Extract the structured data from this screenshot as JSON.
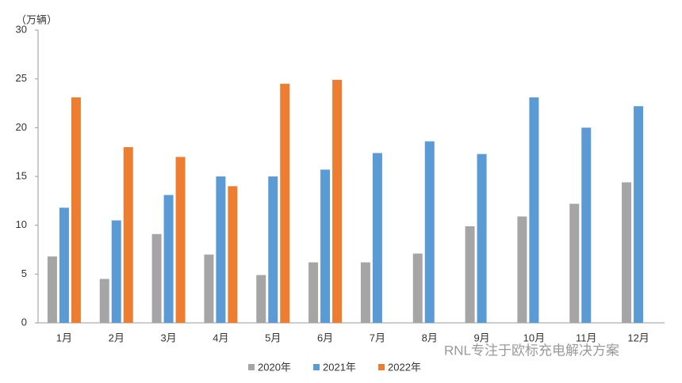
{
  "chart_data": {
    "type": "bar",
    "unit_label": "（万辆）",
    "categories": [
      "1月",
      "2月",
      "3月",
      "4月",
      "5月",
      "6月",
      "7月",
      "8月",
      "9月",
      "10月",
      "11月",
      "12月"
    ],
    "series": [
      {
        "name": "2020年",
        "color": "#a5a5a5",
        "values": [
          6.8,
          4.5,
          9.1,
          7.0,
          4.9,
          6.2,
          6.2,
          7.1,
          9.9,
          10.9,
          12.2,
          14.4
        ]
      },
      {
        "name": "2021年",
        "color": "#5b9bd5",
        "values": [
          11.8,
          10.5,
          13.1,
          15.0,
          15.0,
          15.7,
          17.4,
          18.6,
          17.3,
          23.1,
          20.0,
          22.2
        ]
      },
      {
        "name": "2022年",
        "color": "#ed7d31",
        "values": [
          23.1,
          18.0,
          17.0,
          14.0,
          24.5,
          24.9,
          null,
          null,
          null,
          null,
          null,
          null
        ]
      }
    ],
    "ylim": [
      0,
      30
    ],
    "yticks": [
      0,
      5,
      10,
      15,
      20,
      25,
      30
    ],
    "legend": "bottom",
    "annotation": "RNL专注于欧标充电解决方案"
  }
}
